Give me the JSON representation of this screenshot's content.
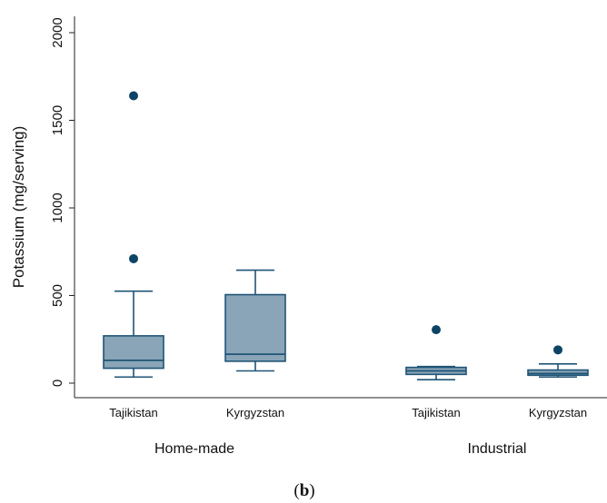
{
  "chart_data": {
    "type": "box",
    "ylabel": "Potassium (mg/serving)",
    "ylim": [
      0,
      2000
    ],
    "yticks": [
      0,
      500,
      1000,
      1500,
      2000
    ],
    "ytick_labels": [
      "0",
      "500",
      "1000",
      "1500",
      "2000"
    ],
    "groups": [
      {
        "label": "Home-made",
        "categories": [
          "Tajikistan",
          "Kyrgyzstan"
        ]
      },
      {
        "label": "Industrial",
        "categories": [
          "Tajikistan",
          "Kyrgyzstan"
        ]
      }
    ],
    "boxes": [
      {
        "group": "Home-made",
        "category": "Tajikistan",
        "whisker_low": 35,
        "q1": 85,
        "median": 130,
        "q3": 270,
        "whisker_high": 525,
        "outliers": [
          710,
          1640
        ]
      },
      {
        "group": "Home-made",
        "category": "Kyrgyzstan",
        "whisker_low": 70,
        "q1": 125,
        "median": 165,
        "q3": 505,
        "whisker_high": 645,
        "outliers": []
      },
      {
        "group": "Industrial",
        "category": "Tajikistan",
        "whisker_low": 20,
        "q1": 50,
        "median": 70,
        "q3": 90,
        "whisker_high": 95,
        "outliers": [
          305
        ]
      },
      {
        "group": "Industrial",
        "category": "Kyrgyzstan",
        "whisker_low": 35,
        "q1": 45,
        "median": 55,
        "q3": 75,
        "whisker_high": 110,
        "outliers": [
          190
        ]
      }
    ],
    "colors": {
      "box_fill": "#8aa5b8",
      "box_stroke": "#1f5476",
      "outlier": "#0d4466"
    },
    "grid": false
  },
  "caption": {
    "open": "(",
    "letter": "b",
    "close": ")"
  }
}
